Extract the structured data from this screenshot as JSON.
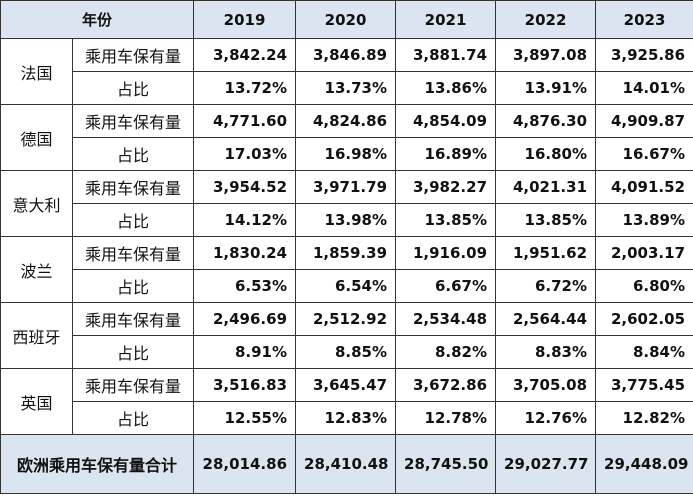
{
  "header": {
    "label": "年份",
    "years": [
      "2019",
      "2020",
      "2021",
      "2022",
      "2023"
    ]
  },
  "rows": [
    {
      "country": "法国",
      "metrics": [
        {
          "label": "乘用车保有量",
          "values": [
            "3,842.24",
            "3,846.89",
            "3,881.74",
            "3,897.08",
            "3,925.86"
          ]
        },
        {
          "label": "占比",
          "values": [
            "13.72%",
            "13.73%",
            "13.86%",
            "13.91%",
            "14.01%"
          ]
        }
      ]
    },
    {
      "country": "德国",
      "metrics": [
        {
          "label": "乘用车保有量",
          "values": [
            "4,771.60",
            "4,824.86",
            "4,854.09",
            "4,876.30",
            "4,909.87"
          ]
        },
        {
          "label": "占比",
          "values": [
            "17.03%",
            "16.98%",
            "16.89%",
            "16.80%",
            "16.67%"
          ]
        }
      ]
    },
    {
      "country": "意大利",
      "metrics": [
        {
          "label": "乘用车保有量",
          "values": [
            "3,954.52",
            "3,971.79",
            "3,982.27",
            "4,021.31",
            "4,091.52"
          ]
        },
        {
          "label": "占比",
          "values": [
            "14.12%",
            "13.98%",
            "13.85%",
            "13.85%",
            "13.89%"
          ]
        }
      ]
    },
    {
      "country": "波兰",
      "metrics": [
        {
          "label": "乘用车保有量",
          "values": [
            "1,830.24",
            "1,859.39",
            "1,916.09",
            "1,951.62",
            "2,003.17"
          ]
        },
        {
          "label": "占比",
          "values": [
            "6.53%",
            "6.54%",
            "6.67%",
            "6.72%",
            "6.80%"
          ]
        }
      ]
    },
    {
      "country": "西班牙",
      "metrics": [
        {
          "label": "乘用车保有量",
          "values": [
            "2,496.69",
            "2,512.92",
            "2,534.48",
            "2,564.44",
            "2,602.05"
          ]
        },
        {
          "label": "占比",
          "values": [
            "8.91%",
            "8.85%",
            "8.82%",
            "8.83%",
            "8.84%"
          ]
        }
      ]
    },
    {
      "country": "英国",
      "metrics": [
        {
          "label": "乘用车保有量",
          "values": [
            "3,516.83",
            "3,645.47",
            "3,672.86",
            "3,705.08",
            "3,775.45"
          ]
        },
        {
          "label": "占比",
          "values": [
            "12.55%",
            "12.83%",
            "12.78%",
            "12.76%",
            "12.82%"
          ]
        }
      ]
    }
  ],
  "total": {
    "label": "欧洲乘用车保有量合计",
    "values": [
      "28,014.86",
      "28,410.48",
      "28,745.50",
      "29,027.77",
      "29,448.09"
    ]
  }
}
